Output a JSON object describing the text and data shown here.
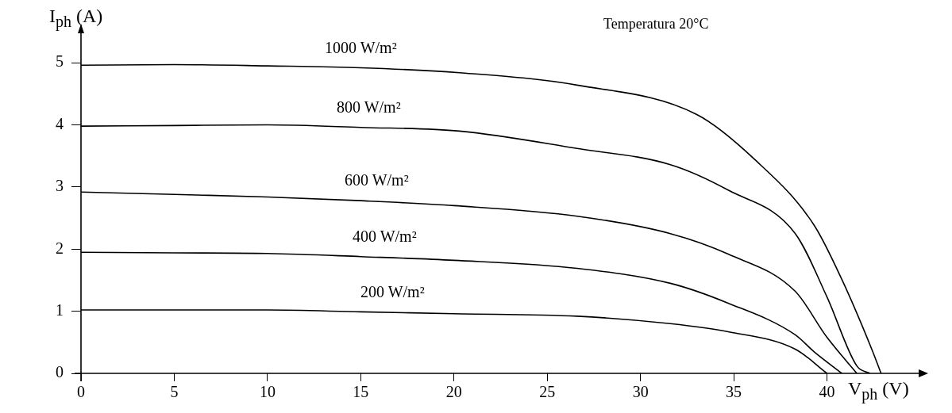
{
  "chart_data": {
    "type": "line",
    "xlabel": "V$_{ph}$ (V)",
    "ylabel": "I$_{ph}$ (A)",
    "annotations": [
      "Temperatura 20°C"
    ],
    "xlim": [
      0,
      45
    ],
    "ylim": [
      0,
      5.5
    ],
    "xticks": [
      0,
      5,
      10,
      15,
      20,
      25,
      30,
      35,
      40
    ],
    "yticks": [
      0,
      1,
      2,
      3,
      4,
      5
    ],
    "grid": false,
    "legend": false,
    "marker": "none",
    "line_style": "solid",
    "series": [
      {
        "name": "1000 W/m²",
        "color": "#000000",
        "x": [
          0,
          5,
          10,
          15,
          20.3,
          26.6,
          33,
          36.1,
          39.3,
          40.8,
          42.4,
          42.9
        ],
        "values": [
          4.96,
          4.97,
          4.95,
          4.92,
          4.84,
          4.64,
          4.17,
          3.45,
          2.39,
          1.51,
          0.39,
          0
        ]
      },
      {
        "name": "800 W/m²",
        "color": "#000000",
        "x": [
          0,
          5,
          10,
          15,
          20.3,
          26.6,
          31.6,
          34.7,
          38.3,
          40,
          41.6,
          42.3
        ],
        "values": [
          3.98,
          3.99,
          4.0,
          3.96,
          3.9,
          3.62,
          3.36,
          2.95,
          2.25,
          1.23,
          0.12,
          0
        ]
      },
      {
        "name": "600 W/m²",
        "color": "#000000",
        "x": [
          0,
          5,
          10,
          15,
          20,
          26.6,
          31.6,
          34.7,
          38.3,
          40,
          41.6
        ],
        "values": [
          2.92,
          2.88,
          2.84,
          2.78,
          2.7,
          2.53,
          2.25,
          1.92,
          1.32,
          0.58,
          0
        ]
      },
      {
        "name": "400 W/m²",
        "color": "#000000",
        "x": [
          0,
          5,
          10,
          15,
          20,
          26.6,
          31.6,
          34.7,
          38.3,
          39.3,
          40.8
        ],
        "values": [
          1.95,
          1.94,
          1.93,
          1.88,
          1.82,
          1.69,
          1.45,
          1.13,
          0.62,
          0.35,
          0
        ]
      },
      {
        "name": "200 W/m²",
        "color": "#000000",
        "x": [
          0,
          5,
          10,
          15,
          20,
          26.6,
          31.6,
          34.7,
          38.3,
          40
        ],
        "values": [
          1.02,
          1.02,
          1.02,
          0.99,
          0.96,
          0.92,
          0.8,
          0.67,
          0.39,
          0
        ]
      }
    ]
  }
}
